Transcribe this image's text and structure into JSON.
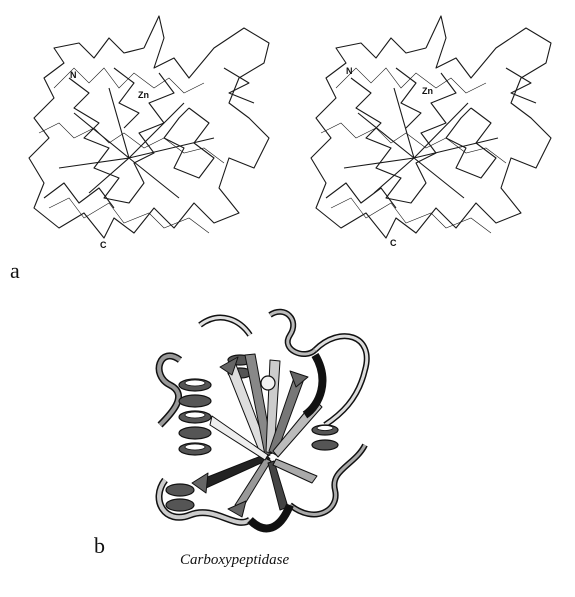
{
  "panel_a": {
    "label": "a",
    "left_view": {
      "n_label": "N",
      "zn_label": "Zn",
      "c_label": "C"
    },
    "right_view": {
      "n_label": "N",
      "zn_label": "Zn",
      "c_label": "C"
    }
  },
  "panel_b": {
    "label": "b",
    "caption": "Carboxypeptidase"
  }
}
